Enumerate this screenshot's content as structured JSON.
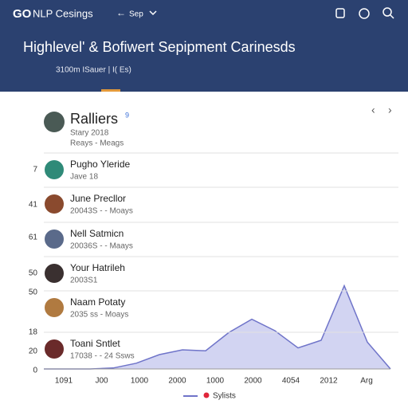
{
  "header": {
    "logo": "GO",
    "brand": "NLP Cesings",
    "nav": "Sep",
    "title": "Highlevel' & Bofiwert Sepipment Carinesds",
    "subtitle": "3100m ISauer | I( Es)"
  },
  "section": {
    "title": "Ralliers",
    "badge": "9",
    "lines": [
      "Stary 2018",
      "Reays - Meags"
    ]
  },
  "rows": [
    {
      "name": "Pugho Yleride",
      "detail": "Jave 18"
    },
    {
      "name": "June Precllor",
      "detail": "20043S - - Moays"
    },
    {
      "name": "Nell Satmicn",
      "detail": "20036S - - Maays"
    },
    {
      "name": "Your Hatrileh",
      "detail": "2003S1"
    },
    {
      "name": "Naam Potaty",
      "detail": "2035 ss - Moays"
    },
    {
      "name": "Toani Sntlet",
      "detail": "17038 - - 24 Ssws"
    }
  ],
  "axis_labels": [
    "7",
    "41",
    "61",
    "50",
    "50",
    "18",
    "20",
    "0"
  ],
  "chart": {
    "type": "area",
    "color": "#bfc2ec",
    "line_color": "#6f74c9",
    "values": [
      0,
      0,
      0,
      1,
      6,
      15,
      20,
      19,
      38,
      52,
      40,
      22,
      30,
      87,
      28,
      0
    ],
    "ylim": [
      0,
      100
    ],
    "x_labels": [
      "1091",
      "J00",
      "1000",
      "2000",
      "1000",
      "2000",
      "4054",
      "2012",
      "Arg"
    ],
    "legend": "Sylists"
  }
}
